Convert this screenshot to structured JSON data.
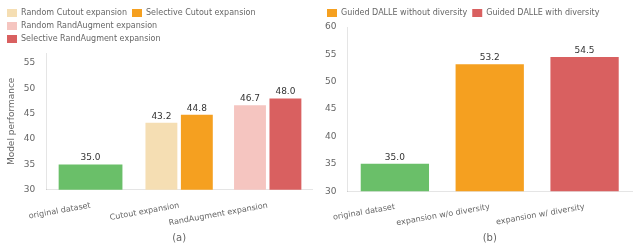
{
  "chart_data": [
    {
      "type": "bar",
      "categories": [
        "original dataset",
        "Cutout expansion",
        "RandAugment expansion"
      ],
      "series": [
        {
          "color": "#6abf69",
          "values": [
            35.0,
            null,
            null
          ],
          "value_labels": [
            "35.0",
            null,
            null
          ]
        },
        {
          "name": "Random Cutout expansion",
          "color": "#f5deb3",
          "values": [
            null,
            43.2,
            null
          ],
          "value_labels": [
            null,
            "43.2",
            null
          ]
        },
        {
          "name": "Selective Cutout expansion",
          "color": "#f5a020",
          "values": [
            null,
            44.8,
            null
          ],
          "value_labels": [
            null,
            "44.8",
            null
          ]
        },
        {
          "name": "Random RandAugment expansion",
          "color": "#f5c5c0",
          "values": [
            null,
            null,
            46.7
          ],
          "value_labels": [
            null,
            null,
            "46.7"
          ]
        },
        {
          "name": "Selective RandAugment expansion",
          "color": "#d96060",
          "values": [
            null,
            null,
            48.0
          ],
          "value_labels": [
            null,
            null,
            "48.0"
          ]
        }
      ],
      "xlabel": "(a)",
      "ylabel": "Model performance",
      "ylim": [
        30,
        57
      ],
      "yticks": [
        30,
        35,
        40,
        45,
        50,
        55
      ],
      "grid": false,
      "legend": "upper left",
      "data_labels": true
    },
    {
      "type": "bar",
      "categories": [
        "original dataset",
        "expansion w/o diversity",
        "expansion w/ diversity"
      ],
      "series": [
        {
          "color": "#6abf69",
          "values": [
            35.0,
            null,
            null
          ],
          "value_labels": [
            "35.0",
            null,
            null
          ]
        },
        {
          "name": "Guided DALLE without diversity",
          "color": "#f5a020",
          "values": [
            null,
            53.2,
            null
          ],
          "value_labels": [
            null,
            "53.2",
            null
          ]
        },
        {
          "name": "Guided DALLE with diversity",
          "color": "#d96060",
          "values": [
            null,
            null,
            54.5
          ],
          "value_labels": [
            null,
            null,
            "54.5"
          ]
        }
      ],
      "xlabel": "(b)",
      "ylim": [
        30,
        60
      ],
      "yticks": [
        30,
        35,
        40,
        45,
        50,
        55,
        60
      ],
      "grid": false,
      "legend": "upper left",
      "data_labels": true
    }
  ]
}
